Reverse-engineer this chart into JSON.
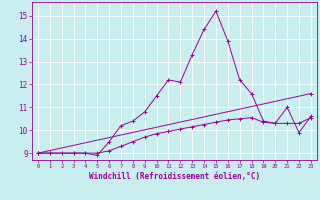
{
  "xlabel": "Windchill (Refroidissement éolien,°C)",
  "bg_color": "#c8eef0",
  "line_color": "#990099",
  "grid_color": "#ffffff",
  "xlim": [
    -0.5,
    23.5
  ],
  "ylim": [
    8.7,
    15.6
  ],
  "yticks": [
    9,
    10,
    11,
    12,
    13,
    14,
    15
  ],
  "xticks": [
    0,
    1,
    2,
    3,
    4,
    5,
    6,
    7,
    8,
    9,
    10,
    11,
    12,
    13,
    14,
    15,
    16,
    17,
    18,
    19,
    20,
    21,
    22,
    23
  ],
  "line1_x": [
    0,
    1,
    2,
    3,
    4,
    5,
    6,
    7,
    8,
    9,
    10,
    11,
    12,
    13,
    14,
    15,
    16,
    17,
    18,
    19,
    20,
    21,
    22,
    23
  ],
  "line1_y": [
    9.0,
    9.0,
    9.0,
    9.0,
    9.0,
    8.9,
    9.5,
    10.2,
    10.4,
    10.8,
    11.5,
    12.2,
    12.1,
    13.3,
    14.4,
    15.2,
    13.9,
    12.2,
    11.6,
    10.4,
    10.3,
    11.0,
    9.9,
    10.6
  ],
  "line2_x": [
    0,
    23
  ],
  "line2_y": [
    9.0,
    11.6
  ],
  "line3_x": [
    0,
    1,
    2,
    3,
    4,
    5,
    6,
    7,
    8,
    9,
    10,
    11,
    12,
    13,
    14,
    15,
    16,
    17,
    18,
    19,
    20,
    21,
    22,
    23
  ],
  "line3_y": [
    9.0,
    9.0,
    9.0,
    9.0,
    9.0,
    9.0,
    9.1,
    9.3,
    9.5,
    9.7,
    9.85,
    9.95,
    10.05,
    10.15,
    10.25,
    10.35,
    10.45,
    10.5,
    10.55,
    10.35,
    10.3,
    10.3,
    10.3,
    10.55
  ]
}
